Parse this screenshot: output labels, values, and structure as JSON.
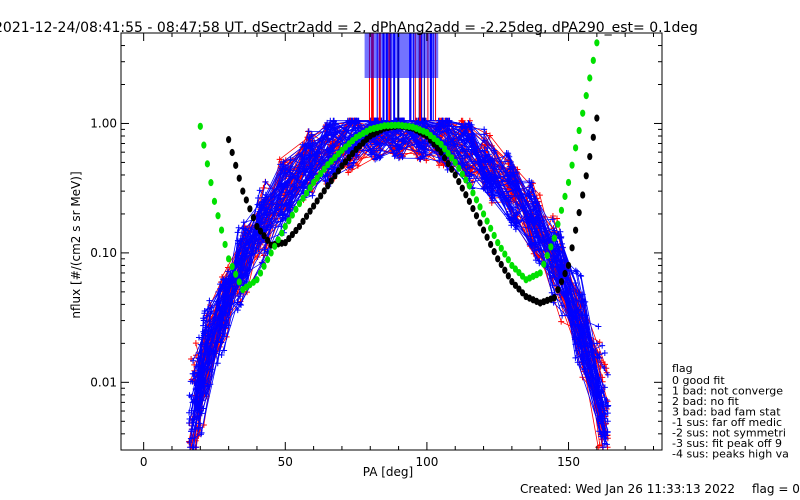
{
  "chart_data": {
    "type": "scatter",
    "title": "2021-12-24/08:41:55 - 08:47:58 UT, dSectr2add = 2, dPhAng2add = -2.25deg, dPA290_est=   0.1deg",
    "xlabel": "PA [deg]",
    "ylabel": "nflux [#/(cm2 s sr MeV)]",
    "xlim": [
      -8,
      183
    ],
    "ylim": [
      0.003,
      5.0
    ],
    "yscale": "log",
    "x_ticks": [
      "0",
      "50",
      "100",
      "150"
    ],
    "y_ticks": [
      "0.01",
      "0.10",
      "1.00"
    ],
    "grid": false,
    "series": [
      {
        "color": "#ff0000",
        "marker": "+",
        "line": true
      },
      {
        "color": "#0000ff",
        "marker": "+",
        "line": true
      },
      {
        "color": "#000000",
        "marker": "dot",
        "x": [
          30,
          35,
          40,
          45,
          50,
          55,
          60,
          65,
          70,
          75,
          80,
          85,
          90,
          95,
          100,
          105,
          110,
          115,
          120,
          125,
          130,
          135,
          140,
          145,
          150,
          155,
          160
        ],
        "y": [
          0.75,
          0.3,
          0.16,
          0.115,
          0.12,
          0.16,
          0.23,
          0.33,
          0.47,
          0.63,
          0.8,
          0.92,
          0.96,
          0.92,
          0.8,
          0.6,
          0.4,
          0.25,
          0.15,
          0.09,
          0.06,
          0.046,
          0.041,
          0.045,
          0.08,
          0.28,
          1.1
        ]
      },
      {
        "color": "#00e000",
        "marker": "dot",
        "x": [
          20,
          25,
          30,
          35,
          40,
          45,
          50,
          55,
          60,
          65,
          70,
          75,
          80,
          85,
          90,
          95,
          100,
          105,
          110,
          115,
          120,
          125,
          130,
          135,
          140,
          145,
          150,
          155,
          160
        ],
        "y": [
          0.95,
          0.25,
          0.09,
          0.052,
          0.062,
          0.1,
          0.16,
          0.24,
          0.35,
          0.48,
          0.62,
          0.78,
          0.9,
          0.96,
          0.97,
          0.94,
          0.85,
          0.69,
          0.5,
          0.33,
          0.2,
          0.12,
          0.08,
          0.062,
          0.07,
          0.13,
          0.35,
          1.2,
          4.2
        ]
      }
    ],
    "legend": {
      "placement": "right",
      "title": "flag",
      "entries": [
        " 0 good fit",
        " 1 bad: not converge",
        " 2 bad: no fit",
        " 3 bad: bad fam stat",
        "-1 sus: far off medic",
        "-2 sus: not symmetri",
        "-3 sus: fit peak off 9",
        "-4 sus: peaks high va"
      ]
    }
  },
  "footer": {
    "created": "Created: Wed Jan 26 11:33:13 2022",
    "flag": "flag = 0"
  }
}
